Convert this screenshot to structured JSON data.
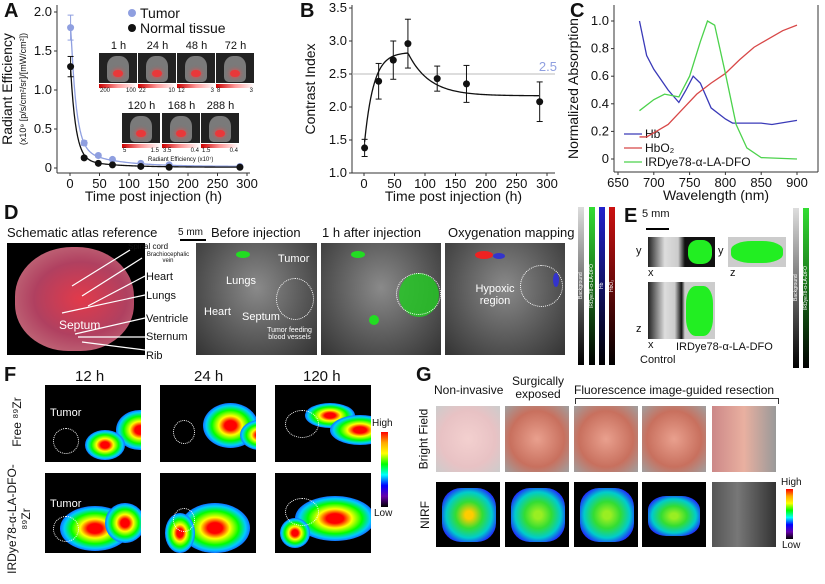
{
  "panels": {
    "a": "A",
    "b": "B",
    "c": "C",
    "d": "D",
    "e": "E",
    "f": "F",
    "g": "G"
  },
  "chart_data": [
    {
      "type": "scatter",
      "panel": "A",
      "xlabel": "Time post injection (h)",
      "ylabel": "Radiant Efficiency",
      "ylabel2": "(x10⁹ [p/s/cm²/sr]/[mW/cm²])",
      "xlim": [
        0,
        300
      ],
      "ylim": [
        0,
        2.0
      ],
      "xticks": [
        0,
        50,
        100,
        150,
        200,
        250,
        300
      ],
      "yticks": [
        0,
        0.5,
        1.0,
        1.5,
        2.0
      ],
      "ytick_labels": [
        "0",
        "0.5",
        "1.0",
        "1.5",
        "2.0"
      ],
      "series": [
        {
          "name": "Tumor",
          "color": "#8f9fe0",
          "x": [
            1,
            24,
            48,
            72,
            120,
            168,
            288
          ],
          "y": [
            1.8,
            0.32,
            0.16,
            0.11,
            0.06,
            0.04,
            0.02
          ],
          "err": [
            0.16,
            0.03,
            0.02,
            0.02,
            0.01,
            0.01,
            0.01
          ]
        },
        {
          "name": "Normal tissue",
          "color": "#111111",
          "x": [
            1,
            24,
            48,
            72,
            120,
            168,
            288
          ],
          "y": [
            1.3,
            0.13,
            0.06,
            0.04,
            0.02,
            0.01,
            0.01
          ],
          "err": [
            0.13,
            0.02,
            0.01,
            0.01,
            0.01,
            0.01,
            0.01
          ]
        }
      ]
    },
    {
      "type": "scatter",
      "panel": "B",
      "xlabel": "Time post injection (h)",
      "ylabel": "Contrast Index",
      "xlim": [
        0,
        300
      ],
      "ylim": [
        1.0,
        3.5
      ],
      "xticks": [
        0,
        50,
        100,
        150,
        200,
        250,
        300
      ],
      "yticks": [
        1.0,
        1.5,
        2.0,
        2.5,
        3.0,
        3.5
      ],
      "ytick_labels": [
        "1.0",
        "1.5",
        "2.0",
        "2.5",
        "3.0",
        "3.5"
      ],
      "reference_line": {
        "y": 2.5,
        "label": "2.5",
        "color": "#8f9fe0"
      },
      "series": [
        {
          "x": [
            1,
            24,
            48,
            72,
            120,
            168,
            288
          ],
          "y": [
            1.38,
            2.39,
            2.71,
            2.96,
            2.43,
            2.35,
            2.08
          ],
          "err": [
            0.13,
            0.27,
            0.29,
            0.37,
            0.19,
            0.28,
            0.3
          ]
        }
      ]
    },
    {
      "type": "line",
      "panel": "C",
      "xlabel": "Wavelength (nm)",
      "ylabel": "Normalized Absorption",
      "xlim": [
        650,
        900
      ],
      "ylim": [
        0,
        1.0
      ],
      "xticks": [
        650,
        700,
        750,
        800,
        850,
        900
      ],
      "yticks": [
        0,
        0.2,
        0.4,
        0.6,
        0.8,
        1.0
      ],
      "ytick_labels": [
        "0",
        "0.2",
        "0.4",
        "0.6",
        "0.8",
        "1.0"
      ],
      "series": [
        {
          "name": "Hb",
          "color": "#3a3ab8",
          "x": [
            680,
            690,
            700,
            720,
            735,
            745,
            755,
            765,
            780,
            800,
            810,
            850,
            865,
            900
          ],
          "y": [
            1.0,
            0.75,
            0.65,
            0.5,
            0.41,
            0.5,
            0.6,
            0.55,
            0.37,
            0.29,
            0.26,
            0.26,
            0.25,
            0.28
          ]
        },
        {
          "name": "HbO₂",
          "color": "#d84848",
          "x": [
            680,
            690,
            700,
            720,
            740,
            760,
            780,
            800,
            820,
            840,
            860,
            880,
            900
          ],
          "y": [
            0.16,
            0.16,
            0.19,
            0.25,
            0.36,
            0.47,
            0.55,
            0.62,
            0.72,
            0.81,
            0.87,
            0.93,
            0.97
          ]
        },
        {
          "name": "IRDye78-α-LA-DFO",
          "color": "#4cd24c",
          "x": [
            680,
            700,
            715,
            735,
            750,
            765,
            775,
            785,
            800,
            815,
            830,
            850,
            900
          ],
          "y": [
            0.35,
            0.43,
            0.47,
            0.45,
            0.6,
            0.85,
            1.0,
            0.97,
            0.62,
            0.25,
            0.08,
            0.01,
            0.0
          ]
        }
      ]
    }
  ],
  "a_insets": {
    "times": [
      "1 h",
      "24 h",
      "48 h",
      "72 h",
      "120 h",
      "168 h",
      "288 h"
    ],
    "scales": [
      [
        "200",
        "100"
      ],
      [
        "22",
        "10"
      ],
      [
        "12",
        "3"
      ],
      [
        "8",
        "3"
      ],
      [
        "5",
        "1.5"
      ],
      [
        "3.5",
        "0.4"
      ],
      [
        "1.5",
        "0.4"
      ]
    ],
    "scale_caption": "Radiant Efficiency (x10⁷)"
  },
  "d": {
    "titles": [
      "Schematic atlas reference",
      "Before injection",
      "1 h after injection",
      "Oxygenation mapping"
    ],
    "scale": "5 mm",
    "atlas_labels": [
      "Spinal cord",
      "Brachiocephalic vein",
      "Heart",
      "Lungs",
      "Septum",
      "Ventricle",
      "Sternum",
      "Rib"
    ],
    "before_labels": [
      "Tumor",
      "Lungs",
      "Heart",
      "Septum",
      "Tumor feeding blood vessels"
    ],
    "oxy_label": "Hypoxic region",
    "colorbars": [
      "Background",
      "IRDye78-α-LA-DFO",
      "Hb",
      "HbO₂"
    ]
  },
  "e": {
    "scale": "5 mm",
    "axes": [
      [
        "y",
        "x"
      ],
      [
        "y",
        "z"
      ],
      [
        "z",
        "x"
      ]
    ],
    "labels": [
      "Control",
      "IRDye78-α-LA-DFO"
    ],
    "colorbars": [
      "Background",
      "IRDye78-α-LA-DFO"
    ]
  },
  "f": {
    "times": [
      "12 h",
      "24 h",
      "120 h"
    ],
    "rows": [
      "Free ⁸⁹Zr",
      "IRDye78-α-LA-DFO-⁸⁹Zr"
    ],
    "tumor": "Tumor",
    "high": "High",
    "low": "Low"
  },
  "g": {
    "cols": [
      "Non-invasive",
      "Surgically exposed",
      "Fluorescence image-guided resection"
    ],
    "rows": [
      "Bright Field",
      "NIRF"
    ],
    "high": "High",
    "low": "Low"
  }
}
